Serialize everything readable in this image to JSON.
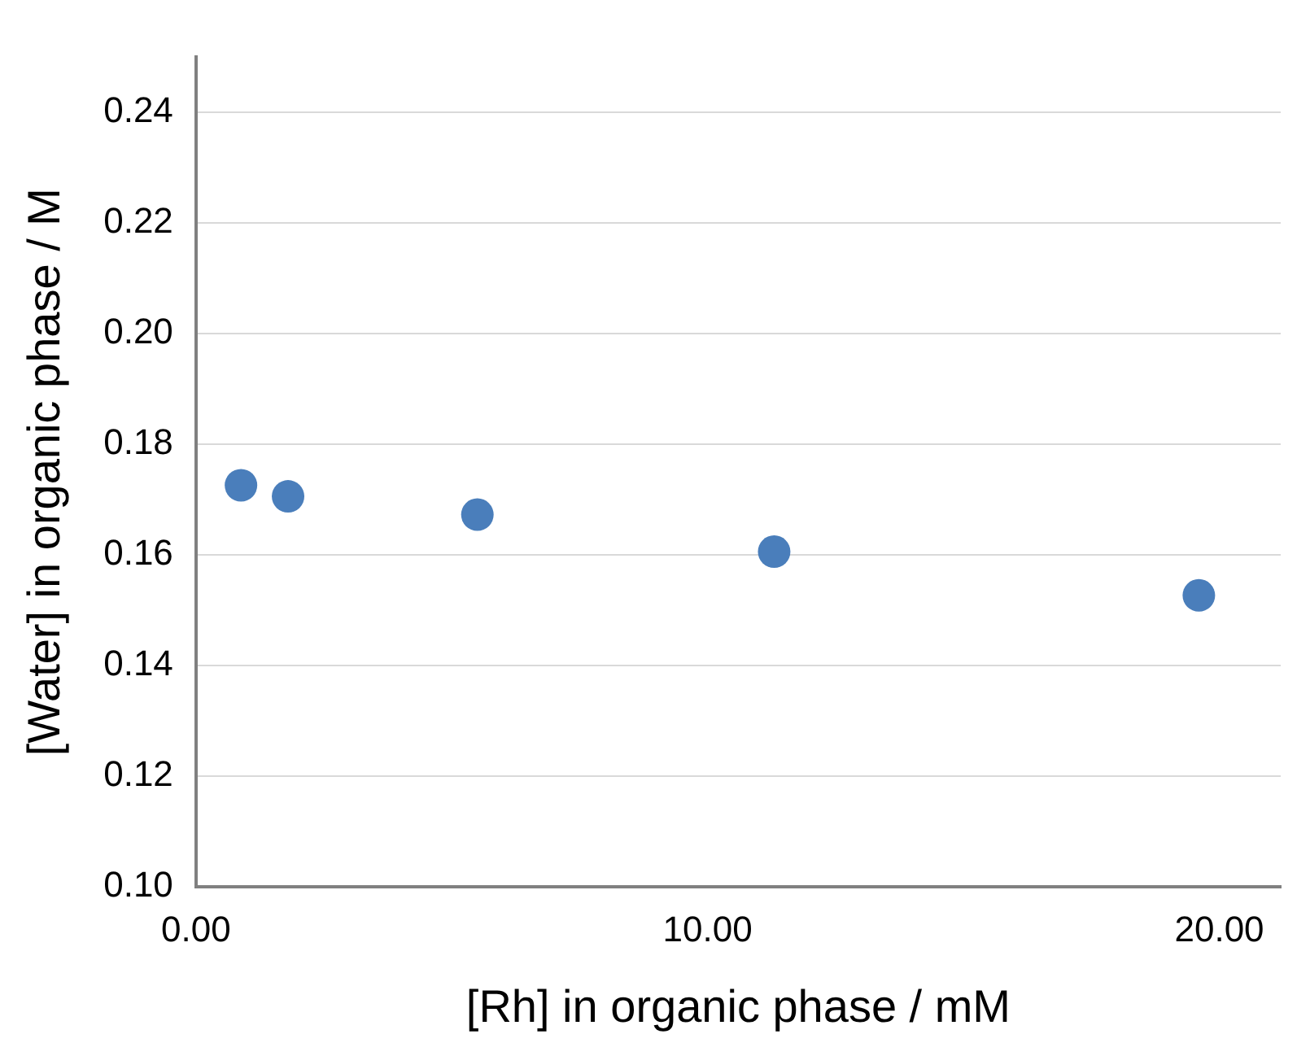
{
  "chart_data": {
    "type": "scatter",
    "xlabel": "[Rh] in organic phase / mM",
    "ylabel": "[Water] in organic phase / M",
    "x": [
      0.88,
      1.8,
      5.5,
      11.3,
      19.6
    ],
    "series": [
      {
        "color": "#4a7ebb",
        "values": [
          0.1726,
          0.1706,
          0.1673,
          0.1606,
          0.1527
        ]
      }
    ],
    "xlim": [
      0,
      21.2
    ],
    "xticks": [
      {
        "value": 0,
        "label": "0.00"
      },
      {
        "value": 10,
        "label": "10.00"
      },
      {
        "value": 20,
        "label": "20.00"
      }
    ],
    "ylim": [
      0.1,
      0.25
    ],
    "yticks": [
      {
        "value": 0.1,
        "label": "0.10"
      },
      {
        "value": 0.12,
        "label": "0.12"
      },
      {
        "value": 0.14,
        "label": "0.14"
      },
      {
        "value": 0.16,
        "label": "0.16"
      },
      {
        "value": 0.18,
        "label": "0.18"
      },
      {
        "value": 0.2,
        "label": "0.20"
      },
      {
        "value": 0.22,
        "label": "0.22"
      },
      {
        "value": 0.24,
        "label": "0.24"
      }
    ],
    "grid": "y",
    "marker": "circle",
    "legend": false
  }
}
